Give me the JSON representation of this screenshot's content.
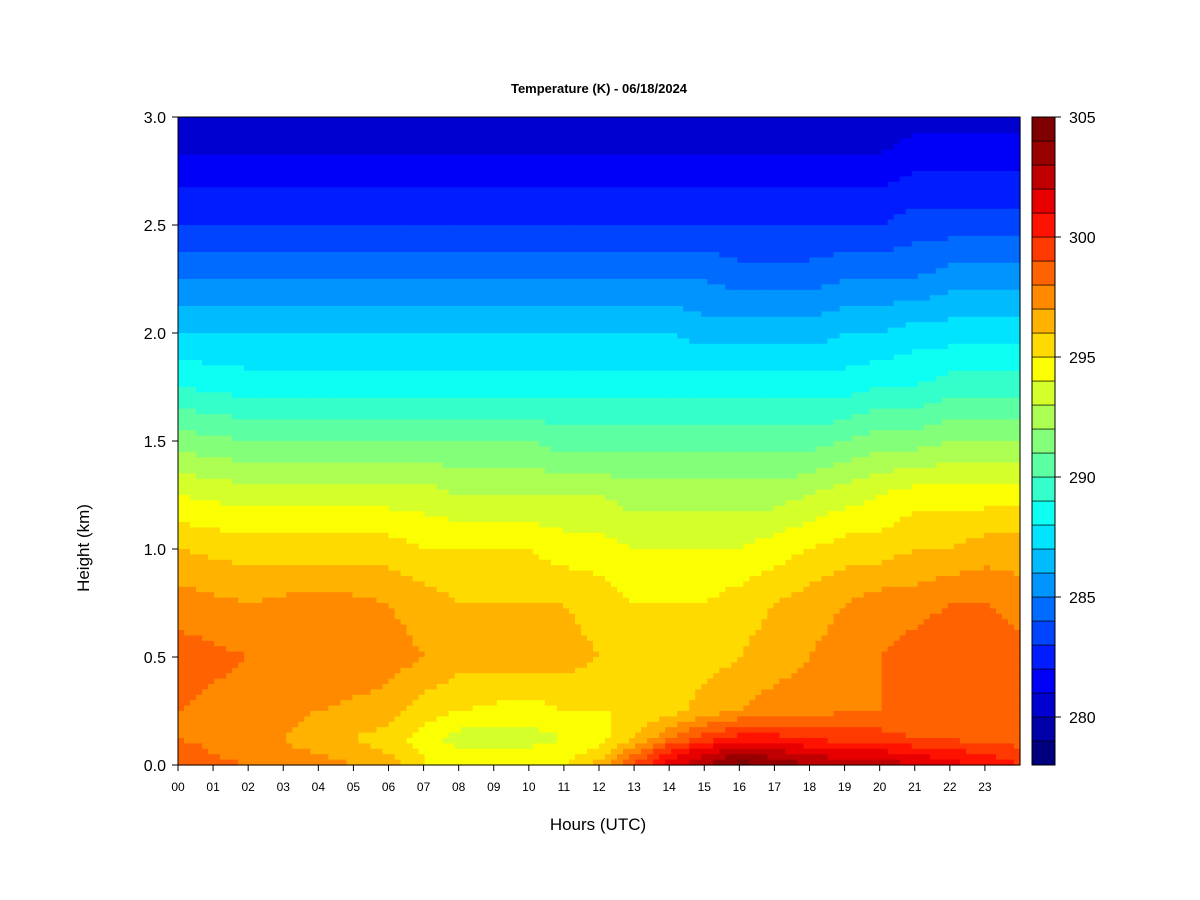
{
  "chart_data": {
    "type": "heatmap",
    "title": "Temperature (K) - 06/18/2024",
    "xlabel": "Hours (UTC)",
    "ylabel": "Height (km)",
    "x_ticks": [
      "00",
      "01",
      "02",
      "03",
      "04",
      "05",
      "06",
      "07",
      "08",
      "09",
      "10",
      "11",
      "12",
      "13",
      "14",
      "15",
      "16",
      "17",
      "18",
      "19",
      "20",
      "21",
      "22",
      "23"
    ],
    "y_ticks": [
      "0.0",
      "0.5",
      "1.0",
      "1.5",
      "2.0",
      "2.5",
      "3.0"
    ],
    "xlim": [
      0,
      24
    ],
    "ylim": [
      0,
      3.0
    ],
    "colorbar": {
      "min": 278,
      "max": 305,
      "levels": 27,
      "ticks": [
        "280",
        "285",
        "290",
        "295",
        "300",
        "305"
      ],
      "colors": [
        "#00007f",
        "#0000a8",
        "#0000d0",
        "#0000f8",
        "#001cff",
        "#0044ff",
        "#006cff",
        "#0094ff",
        "#00bcff",
        "#00e4ff",
        "#0cfff2",
        "#34ffca",
        "#5cffa2",
        "#84ff7a",
        "#acff52",
        "#d4ff2a",
        "#fcff02",
        "#ffda00",
        "#ffb200",
        "#ff8a00",
        "#ff6200",
        "#ff3a00",
        "#ff1200",
        "#e80000",
        "#c00000",
        "#980000",
        "#7f0000"
      ]
    },
    "x_hours": [
      0,
      2,
      4,
      6,
      7,
      8,
      10,
      11,
      12,
      13,
      14,
      15,
      16,
      17,
      18,
      19,
      20,
      21,
      22,
      23,
      24
    ],
    "heights_km": [
      0,
      0.05,
      0.12,
      0.25,
      0.5,
      0.75,
      1.0,
      1.25,
      1.5,
      1.75,
      2.0,
      2.25,
      2.5,
      2.75,
      3.0
    ],
    "temperature_K": [
      [
        299.0,
        298.0,
        297.5,
        296.5,
        295.0,
        294.5,
        294.5,
        295.0,
        296.5,
        299.0,
        301.5,
        303.0,
        304.5,
        304.0,
        303.0,
        302.5,
        302.5,
        302.0,
        301.5,
        300.5,
        300.0
      ],
      [
        298.5,
        297.5,
        297.0,
        296.0,
        295.0,
        294.5,
        294.5,
        294.5,
        295.5,
        298.0,
        300.5,
        302.0,
        303.0,
        302.5,
        302.0,
        301.5,
        301.5,
        301.0,
        300.5,
        300.0,
        299.5
      ],
      [
        298.0,
        297.5,
        296.5,
        295.5,
        294.5,
        293.5,
        293.5,
        294.0,
        294.5,
        296.0,
        298.0,
        299.5,
        300.5,
        300.5,
        300.0,
        299.5,
        299.5,
        299.0,
        299.0,
        298.5,
        298.5
      ],
      [
        298.0,
        297.5,
        297.0,
        296.5,
        295.5,
        295.0,
        294.5,
        295.0,
        295.0,
        295.0,
        295.5,
        296.5,
        297.0,
        297.5,
        297.5,
        298.0,
        298.0,
        298.5,
        298.5,
        298.5,
        298.5
      ],
      [
        298.5,
        298.0,
        298.0,
        297.5,
        297.0,
        296.5,
        296.5,
        296.5,
        296.0,
        295.5,
        295.5,
        295.5,
        296.0,
        296.5,
        297.0,
        297.5,
        298.0,
        298.5,
        299.0,
        299.0,
        298.5
      ],
      [
        297.5,
        297.0,
        297.5,
        297.0,
        296.5,
        296.0,
        296.0,
        296.0,
        295.5,
        295.0,
        295.0,
        295.0,
        295.5,
        296.0,
        296.5,
        297.0,
        297.5,
        297.5,
        298.0,
        298.0,
        297.5
      ],
      [
        296.0,
        295.5,
        295.5,
        295.5,
        295.0,
        295.0,
        295.0,
        294.5,
        294.5,
        294.0,
        294.0,
        294.0,
        294.0,
        294.5,
        295.0,
        295.5,
        295.5,
        296.0,
        296.0,
        296.5,
        296.5
      ],
      [
        294.0,
        293.5,
        293.5,
        293.5,
        293.5,
        293.0,
        293.0,
        293.0,
        293.0,
        292.5,
        292.5,
        292.5,
        292.5,
        292.5,
        293.0,
        293.5,
        294.0,
        294.5,
        294.5,
        294.5,
        294.5
      ],
      [
        291.5,
        291.0,
        291.0,
        291.0,
        291.0,
        291.0,
        291.0,
        290.5,
        290.5,
        290.5,
        290.5,
        290.5,
        290.5,
        290.5,
        290.5,
        291.0,
        291.5,
        291.5,
        292.0,
        292.0,
        292.0
      ],
      [
        289.0,
        288.5,
        288.5,
        288.5,
        288.5,
        288.5,
        288.5,
        288.5,
        288.5,
        288.5,
        288.5,
        288.5,
        288.5,
        288.5,
        288.5,
        288.5,
        289.0,
        289.0,
        289.5,
        289.5,
        289.5
      ],
      [
        287.0,
        287.0,
        287.0,
        287.0,
        287.0,
        287.0,
        287.0,
        287.0,
        287.0,
        287.0,
        287.0,
        286.5,
        286.5,
        286.5,
        286.5,
        287.0,
        287.0,
        287.5,
        287.5,
        287.5,
        287.5
      ],
      [
        285.0,
        285.0,
        285.0,
        285.0,
        285.0,
        285.0,
        285.0,
        285.0,
        285.0,
        285.0,
        285.0,
        285.0,
        284.5,
        284.5,
        284.5,
        285.0,
        285.0,
        285.0,
        285.5,
        285.5,
        285.5
      ],
      [
        283.0,
        283.0,
        283.0,
        283.0,
        283.0,
        283.0,
        283.0,
        283.0,
        283.0,
        283.0,
        283.0,
        283.0,
        283.0,
        283.0,
        283.0,
        283.0,
        283.0,
        283.5,
        283.5,
        283.5,
        283.5
      ],
      [
        281.5,
        281.5,
        281.5,
        281.5,
        281.5,
        281.5,
        281.5,
        281.5,
        281.5,
        281.5,
        281.5,
        281.5,
        281.5,
        281.5,
        281.5,
        281.5,
        281.5,
        282.0,
        282.0,
        282.0,
        282.0
      ],
      [
        280.0,
        280.0,
        280.0,
        280.0,
        280.0,
        280.0,
        280.0,
        280.0,
        280.0,
        280.0,
        280.0,
        280.0,
        280.0,
        280.0,
        280.0,
        280.0,
        280.0,
        280.5,
        280.5,
        280.5,
        280.5
      ]
    ]
  }
}
